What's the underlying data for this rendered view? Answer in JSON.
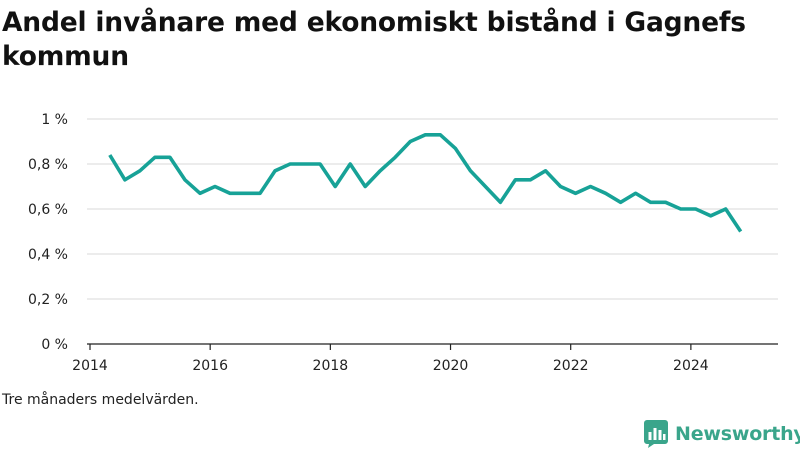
{
  "title": "Andel invånare med ekonomiskt bistånd i Gagnefs kommun",
  "note": "Tre månaders medelvärden.",
  "brand": {
    "name": "Newsworthy",
    "color": "#3aa58b"
  },
  "colors": {
    "line": "#17a297",
    "grid": "#d9d9d9",
    "axis": "#222222"
  },
  "chart_data": {
    "type": "line",
    "title": "Andel invånare med ekonomiskt bistånd i Gagnefs kommun",
    "xlabel": "",
    "ylabel": "",
    "xlim": [
      2013.95,
      2025.45
    ],
    "ylim": [
      0,
      1
    ],
    "grid": true,
    "x_ticks": [
      2014,
      2016,
      2018,
      2020,
      2022,
      2024
    ],
    "x_tick_labels": [
      "2014",
      "2016",
      "2018",
      "2020",
      "2022",
      "2024"
    ],
    "y_ticks": [
      0,
      0.2,
      0.4,
      0.6,
      0.8,
      1
    ],
    "y_tick_labels": [
      "0 %",
      "0,2 %",
      "0,4 %",
      "0,6 %",
      "0,8 %",
      "1 %"
    ],
    "series": [
      {
        "x": [
          2014.33,
          2014.58,
          2014.83,
          2015.08,
          2015.33,
          2015.58,
          2015.83,
          2016.08,
          2016.33,
          2016.58,
          2016.83,
          2017.08,
          2017.33,
          2017.58,
          2017.83,
          2018.08,
          2018.33,
          2018.58,
          2018.83,
          2019.08,
          2019.33,
          2019.58,
          2019.83,
          2020.08,
          2020.33,
          2020.58,
          2020.83,
          2021.08,
          2021.33,
          2021.58,
          2021.83,
          2022.08,
          2022.33,
          2022.58,
          2022.83,
          2023.08,
          2023.33,
          2023.58,
          2023.83,
          2024.08,
          2024.33,
          2024.58,
          2024.83
        ],
        "values": [
          0.84,
          0.73,
          0.77,
          0.83,
          0.83,
          0.73,
          0.67,
          0.7,
          0.67,
          0.67,
          0.67,
          0.77,
          0.8,
          0.8,
          0.8,
          0.7,
          0.8,
          0.7,
          0.77,
          0.83,
          0.9,
          0.93,
          0.93,
          0.87,
          0.77,
          0.7,
          0.63,
          0.73,
          0.73,
          0.77,
          0.7,
          0.67,
          0.7,
          0.67,
          0.63,
          0.67,
          0.63,
          0.63,
          0.6,
          0.6,
          0.57,
          0.6,
          0.5
        ]
      }
    ]
  }
}
